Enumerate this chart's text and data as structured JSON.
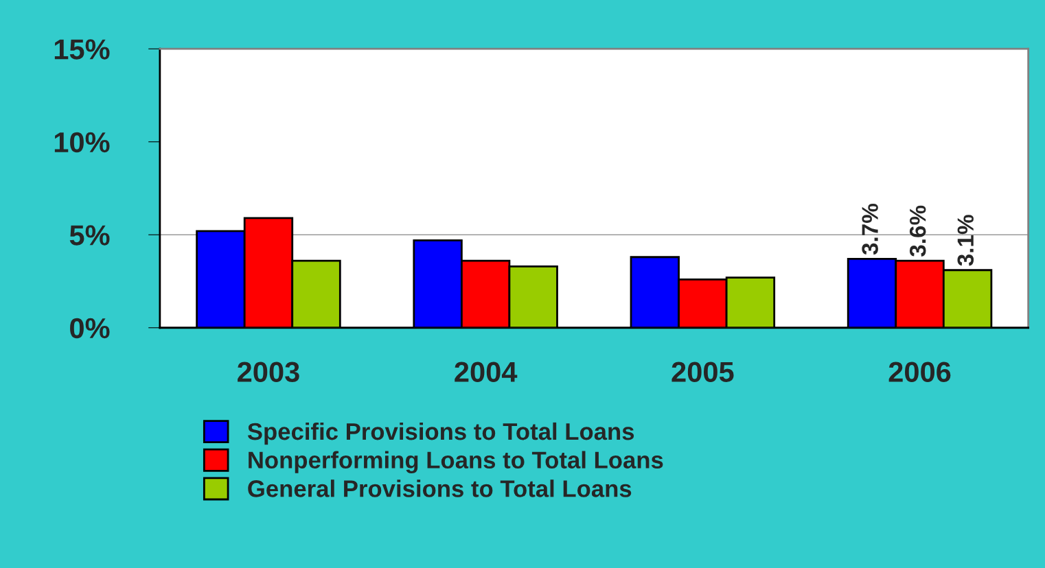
{
  "chart_data": {
    "type": "bar",
    "categories": [
      "2003",
      "2004",
      "2005",
      "2006"
    ],
    "series": [
      {
        "name": "Specific Provisions to Total Loans",
        "color": "#0000ff",
        "values": [
          5.2,
          4.7,
          3.8,
          3.7
        ],
        "value_labels": [
          null,
          null,
          null,
          "3.7%"
        ]
      },
      {
        "name": "Nonperforming Loans to Total Loans",
        "color": "#ff0000",
        "values": [
          5.9,
          3.6,
          2.6,
          3.6
        ],
        "value_labels": [
          null,
          null,
          null,
          "3.6%"
        ]
      },
      {
        "name": "General Provisions to Total Loans",
        "color": "#99cc00",
        "values": [
          3.6,
          3.3,
          2.7,
          3.1
        ],
        "value_labels": [
          null,
          null,
          null,
          "3.1%"
        ]
      }
    ],
    "ylim": [
      0,
      15
    ],
    "yticks": [
      {
        "value": 0,
        "label": "0%"
      },
      {
        "value": 5,
        "label": "5%"
      },
      {
        "value": 10,
        "label": "10%"
      },
      {
        "value": 15,
        "label": "15%"
      }
    ],
    "ref_lines": [
      {
        "axis": "y",
        "value": 5,
        "color": "#999999"
      }
    ],
    "legend": "bottom"
  }
}
